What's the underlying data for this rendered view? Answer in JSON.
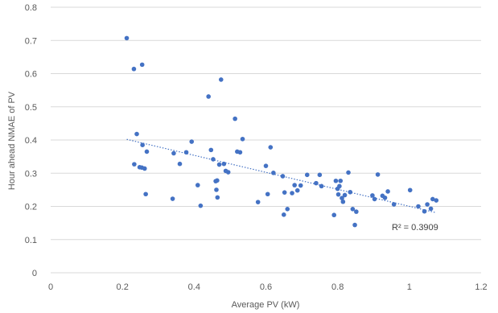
{
  "chart_data": {
    "type": "scatter",
    "xlabel": "Average PV (kW)",
    "ylabel": "Hour ahead NMAE of PV",
    "xlim": [
      0,
      1.2
    ],
    "ylim": [
      0,
      0.8
    ],
    "x_ticks": [
      "0",
      "0.2",
      "0.4",
      "0.6",
      "0.8",
      "1",
      "1.2"
    ],
    "y_ticks": [
      "0",
      "0.1",
      "0.2",
      "0.3",
      "0.4",
      "0.5",
      "0.6",
      "0.7",
      "0.8"
    ],
    "grid": "horizontal",
    "legend": "none",
    "marker_color": "#4472c4",
    "gridline_color": "#d9d9d9",
    "series": [
      {
        "points": [
          [
            0.212,
            0.707
          ],
          [
            0.232,
            0.614
          ],
          [
            0.255,
            0.627
          ],
          [
            0.233,
            0.327
          ],
          [
            0.24,
            0.418
          ],
          [
            0.248,
            0.318
          ],
          [
            0.254,
            0.317
          ],
          [
            0.256,
            0.385
          ],
          [
            0.262,
            0.314
          ],
          [
            0.265,
            0.237
          ],
          [
            0.268,
            0.365
          ],
          [
            0.34,
            0.223
          ],
          [
            0.343,
            0.36
          ],
          [
            0.36,
            0.328
          ],
          [
            0.378,
            0.363
          ],
          [
            0.393,
            0.395
          ],
          [
            0.41,
            0.264
          ],
          [
            0.418,
            0.202
          ],
          [
            0.44,
            0.531
          ],
          [
            0.447,
            0.37
          ],
          [
            0.453,
            0.342
          ],
          [
            0.46,
            0.276
          ],
          [
            0.462,
            0.25
          ],
          [
            0.464,
            0.278
          ],
          [
            0.465,
            0.227
          ],
          [
            0.47,
            0.326
          ],
          [
            0.475,
            0.582
          ],
          [
            0.483,
            0.328
          ],
          [
            0.488,
            0.307
          ],
          [
            0.495,
            0.303
          ],
          [
            0.514,
            0.464
          ],
          [
            0.52,
            0.365
          ],
          [
            0.528,
            0.363
          ],
          [
            0.535,
            0.403
          ],
          [
            0.578,
            0.213
          ],
          [
            0.6,
            0.322
          ],
          [
            0.605,
            0.237
          ],
          [
            0.613,
            0.378
          ],
          [
            0.621,
            0.301
          ],
          [
            0.647,
            0.291
          ],
          [
            0.65,
            0.175
          ],
          [
            0.652,
            0.242
          ],
          [
            0.66,
            0.192
          ],
          [
            0.673,
            0.24
          ],
          [
            0.68,
            0.264
          ],
          [
            0.688,
            0.248
          ],
          [
            0.697,
            0.263
          ],
          [
            0.715,
            0.295
          ],
          [
            0.74,
            0.27
          ],
          [
            0.75,
            0.295
          ],
          [
            0.755,
            0.261
          ],
          [
            0.79,
            0.174
          ],
          [
            0.795,
            0.277
          ],
          [
            0.8,
            0.253
          ],
          [
            0.802,
            0.236
          ],
          [
            0.805,
            0.261
          ],
          [
            0.808,
            0.277
          ],
          [
            0.812,
            0.225
          ],
          [
            0.815,
            0.214
          ],
          [
            0.82,
            0.234
          ],
          [
            0.83,
            0.302
          ],
          [
            0.835,
            0.243
          ],
          [
            0.842,
            0.192
          ],
          [
            0.848,
            0.144
          ],
          [
            0.852,
            0.184
          ],
          [
            0.897,
            0.233
          ],
          [
            0.903,
            0.222
          ],
          [
            0.912,
            0.296
          ],
          [
            0.925,
            0.232
          ],
          [
            0.932,
            0.226
          ],
          [
            0.94,
            0.245
          ],
          [
            0.957,
            0.206
          ],
          [
            1.002,
            0.249
          ],
          [
            1.025,
            0.2
          ],
          [
            1.042,
            0.185
          ],
          [
            1.05,
            0.206
          ],
          [
            1.06,
            0.193
          ],
          [
            1.065,
            0.222
          ],
          [
            1.075,
            0.218
          ]
        ]
      }
    ],
    "trendline": {
      "type": "linear",
      "style": "dotted",
      "x_range": [
        0.212,
        1.075
      ],
      "y_at_start": 0.402,
      "y_at_end": 0.181,
      "label": "R² = 0.3909"
    }
  }
}
